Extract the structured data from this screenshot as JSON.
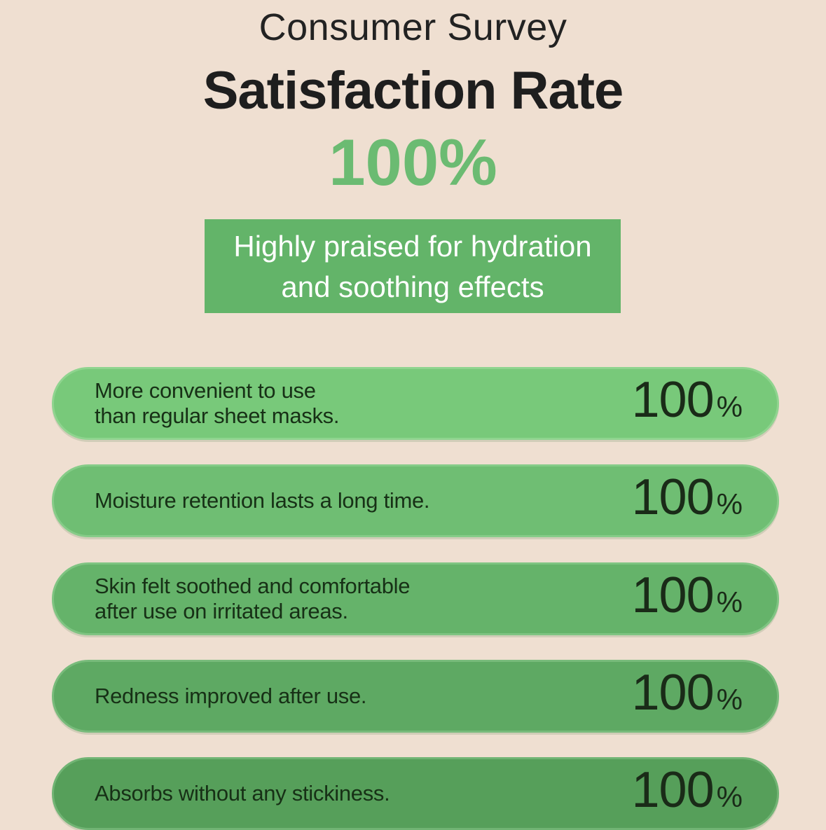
{
  "header": {
    "kicker": "Consumer Survey",
    "title": "Satisfaction Rate",
    "rate": "100%"
  },
  "praise": {
    "line1": "Highly praised for hydration",
    "line2": "and soothing effects"
  },
  "items": [
    {
      "line1": "More convenient to use",
      "line2": "than regular sheet masks.",
      "value": "100",
      "unit": "%",
      "color": "#78c97a",
      "border": "#8fd48f"
    },
    {
      "line1": "Moisture retention lasts a long time.",
      "line2": "",
      "value": "100",
      "unit": "%",
      "color": "#6fbe73",
      "border": "#86cc88"
    },
    {
      "line1": "Skin felt soothed and comfortable",
      "line2": "after use on irritated areas.",
      "value": "100",
      "unit": "%",
      "color": "#65b36a",
      "border": "#7fc482"
    },
    {
      "line1": "Redness improved after use.",
      "line2": "",
      "value": "100",
      "unit": "%",
      "color": "#5ea963",
      "border": "#78bb7b"
    },
    {
      "line1": "Absorbs without any stickiness.",
      "line2": "",
      "value": "100",
      "unit": "%",
      "color": "#569f5a",
      "border": "#71b474"
    }
  ]
}
